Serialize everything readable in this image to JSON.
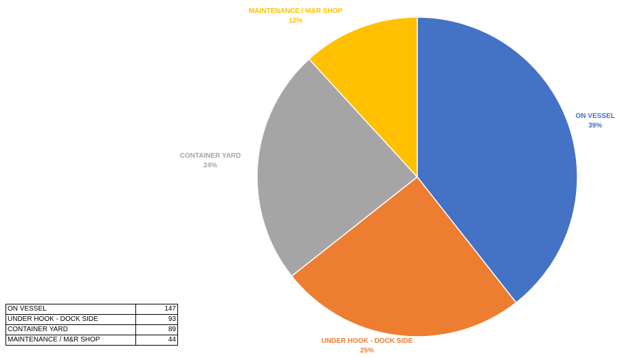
{
  "chart_data": {
    "type": "pie",
    "title": "",
    "slices": [
      {
        "label": "ON VESSEL",
        "value": 147,
        "percent_label": "39%",
        "color": "#4472C4"
      },
      {
        "label": "UNDER HOOK - DOCK SIDE",
        "value": 93,
        "percent_label": "25%",
        "color": "#ED7D31"
      },
      {
        "label": "CONTAINER YARD",
        "value": 89,
        "percent_label": "24%",
        "color": "#A5A5A5"
      },
      {
        "label": "MAINTENANCE / M&R SHOP",
        "value": 44,
        "percent_label": "12%",
        "color": "#FFC000"
      }
    ],
    "start": "12 o'clock",
    "direction": "clockwise",
    "legend": "none"
  },
  "table": {
    "rows": [
      {
        "category": "ON VESSEL",
        "value": "147"
      },
      {
        "category": "UNDER HOOK - DOCK SIDE",
        "value": "93"
      },
      {
        "category": "CONTAINER YARD",
        "value": "89"
      },
      {
        "category": "MAINTENANCE / M&R SHOP",
        "value": "44"
      }
    ]
  }
}
